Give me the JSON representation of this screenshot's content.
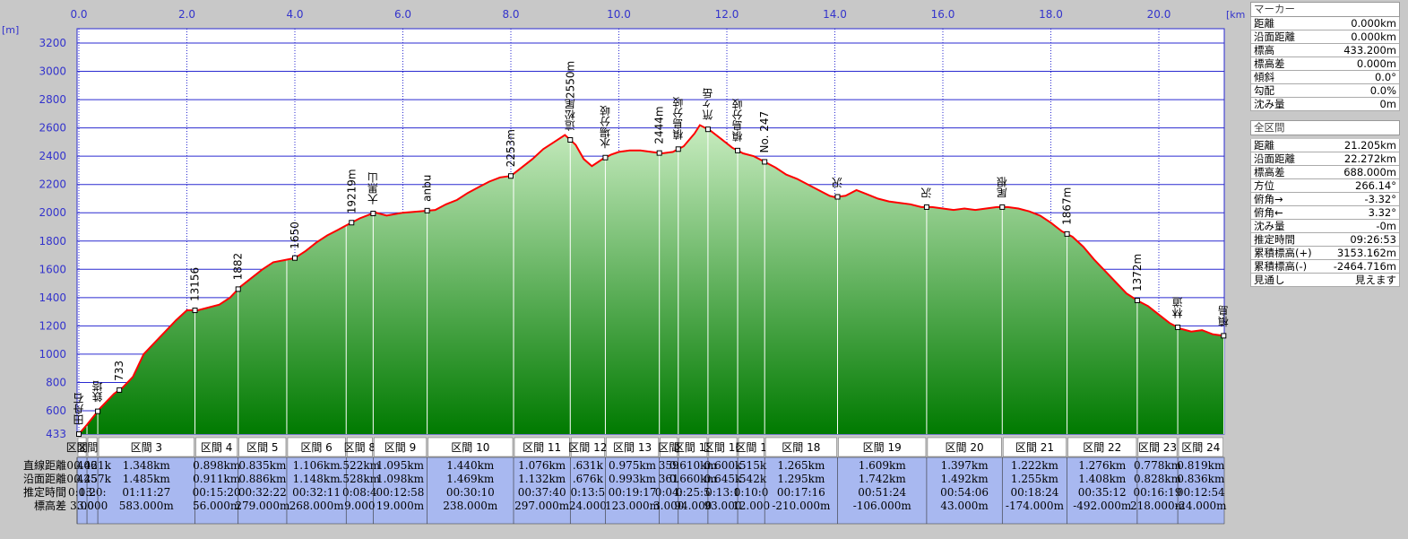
{
  "chart_data": {
    "type": "area",
    "title": "",
    "xlabel": "",
    "ylabel": "",
    "x_unit": "[km]",
    "y_unit": "[m]",
    "xlim": [
      0,
      21.205
    ],
    "ylim": [
      433,
      3300
    ],
    "x_ticks": [
      "0.0",
      "2.0",
      "4.0",
      "6.0",
      "8.0",
      "10.0",
      "12.0",
      "14.0",
      "16.0",
      "18.0",
      "20.0"
    ],
    "y_ticks": [
      "433",
      "600",
      "800",
      "1000",
      "1200",
      "1400",
      "1600",
      "1800",
      "2000",
      "2200",
      "2400",
      "2600",
      "2800",
      "3000",
      "3200"
    ],
    "grid": true,
    "series": [
      {
        "name": "",
        "x": [
          0.0,
          0.15,
          0.4,
          0.65,
          0.8,
          1.0,
          1.2,
          1.4,
          1.6,
          1.8,
          2.0,
          2.2,
          2.4,
          2.6,
          2.8,
          3.0,
          3.2,
          3.4,
          3.6,
          3.8,
          4.0,
          4.2,
          4.4,
          4.6,
          4.8,
          5.0,
          5.2,
          5.4,
          5.5,
          5.7,
          6.0,
          6.3,
          6.6,
          6.8,
          7.0,
          7.2,
          7.4,
          7.6,
          7.8,
          8.0,
          8.2,
          8.4,
          8.6,
          8.8,
          9.0,
          9.2,
          9.35,
          9.5,
          9.7,
          9.85,
          10.0,
          10.2,
          10.4,
          10.6,
          10.8,
          11.0,
          11.2,
          11.4,
          11.5,
          11.7,
          11.9,
          12.1,
          12.3,
          12.5,
          12.7,
          12.9,
          13.1,
          13.3,
          13.5,
          13.7,
          13.9,
          14.0,
          14.2,
          14.4,
          14.6,
          14.8,
          15.0,
          15.2,
          15.4,
          15.6,
          15.8,
          16.0,
          16.2,
          16.4,
          16.6,
          16.8,
          17.0,
          17.2,
          17.4,
          17.6,
          17.8,
          18.0,
          18.2,
          18.4,
          18.6,
          18.8,
          19.0,
          19.2,
          19.4,
          19.6,
          19.8,
          20.0,
          20.2,
          20.4,
          20.6,
          20.8,
          21.0,
          21.205
        ],
        "y": [
          433,
          500,
          620,
          720,
          760,
          840,
          1000,
          1080,
          1160,
          1240,
          1310,
          1310,
          1330,
          1350,
          1400,
          1480,
          1540,
          1600,
          1650,
          1665,
          1680,
          1730,
          1790,
          1840,
          1880,
          1920,
          1960,
          1990,
          2000,
          1980,
          2000,
          2010,
          2020,
          2060,
          2090,
          2140,
          2180,
          2220,
          2250,
          2260,
          2320,
          2380,
          2450,
          2500,
          2550,
          2480,
          2380,
          2330,
          2380,
          2410,
          2430,
          2440,
          2440,
          2430,
          2420,
          2430,
          2470,
          2560,
          2620,
          2580,
          2520,
          2460,
          2420,
          2400,
          2360,
          2320,
          2270,
          2240,
          2200,
          2160,
          2120,
          2110,
          2120,
          2160,
          2130,
          2100,
          2080,
          2070,
          2060,
          2040,
          2040,
          2030,
          2020,
          2030,
          2020,
          2030,
          2040,
          2040,
          2030,
          2010,
          1980,
          1930,
          1870,
          1830,
          1760,
          1670,
          1590,
          1510,
          1430,
          1380,
          1340,
          1280,
          1220,
          1180,
          1160,
          1170,
          1140,
          1130
        ]
      }
    ],
    "markers": [
      {
        "x": 0.0,
        "label": "田舟石"
      },
      {
        "x": 0.35,
        "label": "鉄塔"
      },
      {
        "x": 0.75,
        "label": "733"
      },
      {
        "x": 2.15,
        "label": "13156"
      },
      {
        "x": 2.95,
        "label": "1882"
      },
      {
        "x": 4.0,
        "label": "1650"
      },
      {
        "x": 5.05,
        "label": "19219m"
      },
      {
        "x": 5.45,
        "label": "大黒山"
      },
      {
        "x": 6.45,
        "label": "anbu"
      },
      {
        "x": 8.0,
        "label": "2253m"
      },
      {
        "x": 9.1,
        "label": "這松尾2550m"
      },
      {
        "x": 9.75,
        "label": "水場分岐"
      },
      {
        "x": 10.75,
        "label": "2444m"
      },
      {
        "x": 11.1,
        "label": "槙島分岐"
      },
      {
        "x": 11.65,
        "label": "笊ヶ岳"
      },
      {
        "x": 12.2,
        "label": "槙島分岐"
      },
      {
        "x": 12.7,
        "label": "No. 247"
      },
      {
        "x": 14.05,
        "label": "沢"
      },
      {
        "x": 15.7,
        "label": "沢"
      },
      {
        "x": 17.1,
        "label": "尾根"
      },
      {
        "x": 18.3,
        "label": "1867m"
      },
      {
        "x": 19.6,
        "label": "1372m"
      },
      {
        "x": 20.35,
        "label": "林道"
      },
      {
        "x": 21.2,
        "label": "槙島"
      }
    ],
    "sections": [
      {
        "label": "区間 1",
        "linear": "0.406",
        "along": "0.425",
        "time": "0:13:",
        "diff": "3.00"
      },
      {
        "label": "区間 2",
        "linear": "0.421k",
        "along": "0.457k",
        "time": "0:20:",
        "diff": "3.000"
      },
      {
        "label": "区間 3",
        "linear": "1.348km",
        "along": "1.485km",
        "time": "01:11:27",
        "diff": "583.000m"
      },
      {
        "label": "区間 4",
        "linear": "0.898km",
        "along": "0.911km",
        "time": "00:15:20",
        "diff": "56.000m"
      },
      {
        "label": "区間 5",
        "linear": "0.835km",
        "along": "0.886km",
        "time": "00:32:22",
        "diff": "279.000m"
      },
      {
        "label": "区間 6",
        "linear": "1.106km",
        "along": "1.148km",
        "time": "00:32:11",
        "diff": "268.000m"
      },
      {
        "label": "区間 8",
        "linear": ".522km",
        "along": ".528km",
        "time": "0:08:4",
        "diff": "9.000"
      },
      {
        "label": "区間 9",
        "linear": "1.095km",
        "along": "1.098km",
        "time": "00:12:58",
        "diff": "19.000m"
      },
      {
        "label": "区間 10",
        "linear": "1.440km",
        "along": "1.469km",
        "time": "00:30:10",
        "diff": "238.000m"
      },
      {
        "label": "区間 11",
        "linear": "1.076km",
        "along": "1.132km",
        "time": "00:37:40",
        "diff": "297.000m"
      },
      {
        "label": "区間 12",
        "linear": ".631k",
        "along": ".676k",
        "time": "0:13:5",
        "diff": "24.000"
      },
      {
        "label": "区間 13",
        "linear": "0.975km",
        "along": "0.993km",
        "time": "00:19:17",
        "diff": "123.000m"
      },
      {
        "label": "区間",
        "linear": "359",
        "along": "361",
        "time": "0:04:",
        "diff": "3.000"
      },
      {
        "label": "区間 15",
        "linear": "0.610km",
        "along": "0.660km",
        "time": "0:25:5",
        "diff": "94.000"
      },
      {
        "label": "区間 16",
        "linear": "0.600k",
        "along": "0.645k",
        "time": "0:13:1",
        "diff": "93.000"
      },
      {
        "label": "区間 1",
        "linear": ".515k",
        "along": ".542k",
        "time": "0:10:0",
        "diff": "12.000"
      },
      {
        "label": "区間 18",
        "linear": "1.265km",
        "along": "1.295km",
        "time": "00:17:16",
        "diff": "-210.000m"
      },
      {
        "label": "区間 19",
        "linear": "1.609km",
        "along": "1.742km",
        "time": "00:51:24",
        "diff": "-106.000m"
      },
      {
        "label": "区間 20",
        "linear": "1.397km",
        "along": "1.492km",
        "time": "00:54:06",
        "diff": "43.000m"
      },
      {
        "label": "区間 21",
        "linear": "1.222km",
        "along": "1.255km",
        "time": "00:18:24",
        "diff": "-174.000m"
      },
      {
        "label": "区間 22",
        "linear": "1.276km",
        "along": "1.408km",
        "time": "00:35:12",
        "diff": "-492.000m"
      },
      {
        "label": "区間 23",
        "linear": "0.778km",
        "along": "0.828km",
        "time": "00:16:19",
        "diff": "218.000m"
      },
      {
        "label": "区間 24",
        "linear": "0.819km",
        "along": "0.836km",
        "time": "00:12:54",
        "diff": "-24.000m"
      }
    ],
    "section_bounds": [
      0.0,
      0.15,
      0.35,
      2.15,
      2.95,
      3.85,
      4.95,
      5.45,
      6.45,
      8.05,
      9.1,
      9.75,
      10.75,
      11.1,
      11.65,
      12.2,
      12.7,
      14.05,
      15.7,
      17.1,
      18.3,
      19.6,
      20.35,
      21.205
    ],
    "row_labels": [
      "直線距離",
      "沿面距離",
      "推定時間",
      "標高差"
    ],
    "colors": {
      "line": "#ff0000",
      "fill_top": "#b8e0b0",
      "fill_bottom": "#007a00",
      "grid": "#2a2ad0",
      "plot_bg": "#ffffff",
      "tick_text": "#3333cc",
      "table_bg": "#a8b8f0"
    }
  },
  "marker_panel": {
    "title": "マーカー",
    "rows": [
      {
        "k": "距離",
        "v": "0.000km"
      },
      {
        "k": "沿面距離",
        "v": "0.000km"
      },
      {
        "k": "標高",
        "v": "433.200m"
      },
      {
        "k": "標高差",
        "v": "0.000m"
      },
      {
        "k": "傾斜",
        "v": "0.0°"
      },
      {
        "k": "勾配",
        "v": "0.0%"
      },
      {
        "k": "沈み量",
        "v": "0m"
      }
    ]
  },
  "total_panel": {
    "title": "全区間",
    "rows": [
      {
        "k": "距離",
        "v": "21.205km"
      },
      {
        "k": "沿面距離",
        "v": "22.272km"
      },
      {
        "k": "標高差",
        "v": "688.000m"
      },
      {
        "k": "方位",
        "v": "266.14°"
      },
      {
        "k": "俯角→",
        "v": "-3.32°"
      },
      {
        "k": "俯角←",
        "v": "3.32°"
      },
      {
        "k": "沈み量",
        "v": "-0m"
      },
      {
        "k": "推定時間",
        "v": "09:26:53"
      },
      {
        "k": "累積標高(+)",
        "v": "3153.162m"
      },
      {
        "k": "累積標高(-)",
        "v": "-2464.716m"
      },
      {
        "k": "見通し",
        "v": "見えます"
      }
    ]
  }
}
